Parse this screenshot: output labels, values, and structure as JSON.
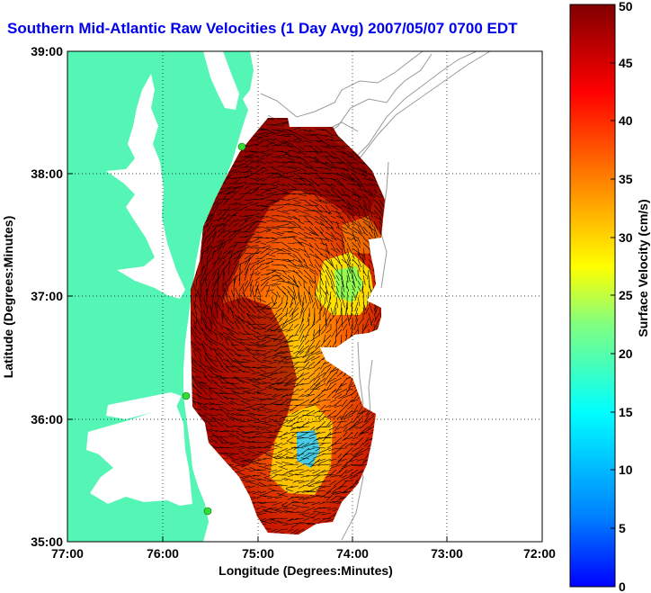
{
  "title": "Southern Mid-Atlantic Raw Velocities (1 Day Avg) 2007/05/07 0700 EDT",
  "x_axis": {
    "label": "Longitude (Degrees:Minutes)",
    "ticks": [
      "77:00",
      "76:00",
      "75:00",
      "74:00",
      "73:00",
      "72:00"
    ]
  },
  "y_axis": {
    "label": "Latitude (Degrees:Minutes)",
    "ticks": [
      "39:00",
      "38:00",
      "37:00",
      "36:00",
      "35:00"
    ]
  },
  "colorbar": {
    "label": "Surface Velocity (cm/s)",
    "ticks": [
      "0",
      "5",
      "10",
      "15",
      "20",
      "25",
      "30",
      "35",
      "40",
      "45",
      "50"
    ],
    "min": 0,
    "max": 50
  },
  "colors": {
    "land": "#55f5b5",
    "title": "#0000ee",
    "vector": "#000000",
    "bathymetry": "#999999"
  },
  "stations": [
    "station-1",
    "station-2",
    "station-3"
  ]
}
